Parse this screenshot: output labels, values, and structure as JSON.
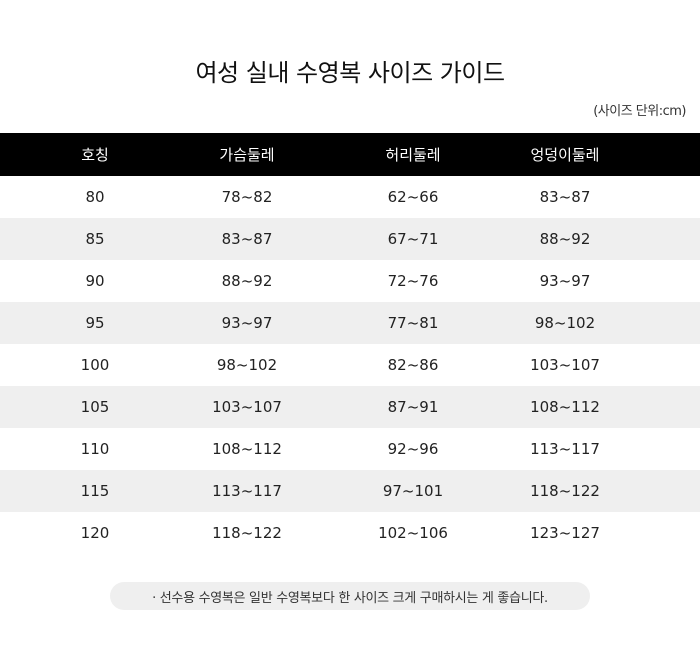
{
  "title": "여성 실내 수영복 사이즈  가이드",
  "unit_note": "(사이즈 단위:cm)",
  "table": {
    "headers": [
      "호칭",
      "가슴둘레",
      "허리둘레",
      "엉덩이둘레"
    ],
    "rows": [
      [
        "80",
        "78~82",
        "62~66",
        "83~87"
      ],
      [
        "85",
        "83~87",
        "67~71",
        "88~92"
      ],
      [
        "90",
        "88~92",
        "72~76",
        "93~97"
      ],
      [
        "95",
        "93~97",
        "77~81",
        "98~102"
      ],
      [
        "100",
        "98~102",
        "82~86",
        "103~107"
      ],
      [
        "105",
        "103~107",
        "87~91",
        "108~112"
      ],
      [
        "110",
        "108~112",
        "92~96",
        "113~117"
      ],
      [
        "115",
        "113~117",
        "97~101",
        "118~122"
      ],
      [
        "120",
        "118~122",
        "102~106",
        "123~127"
      ]
    ]
  },
  "footnote": "· 선수용 수영복은 일반 수영복보다 한 사이즈 크게 구매하시는 게 좋습니다.",
  "colors": {
    "header_bg": "#000000",
    "alt_row_bg": "#efefef"
  }
}
